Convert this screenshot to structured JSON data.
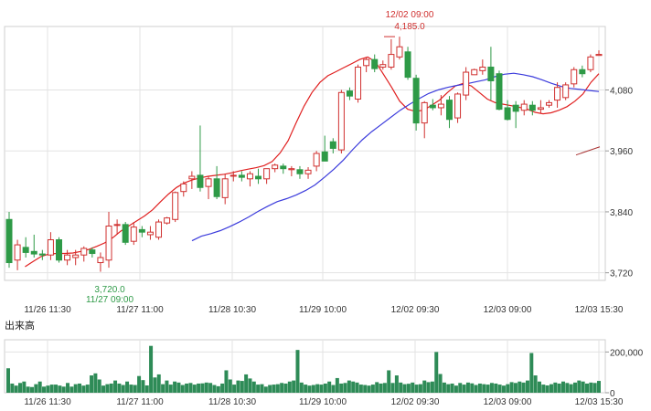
{
  "chart_data": [
    {
      "type": "candlestick",
      "title": "",
      "x_ticks": [
        "11/26 11:30",
        "11/27 11:00",
        "11/28 10:30",
        "11/29 10:00",
        "12/02 09:30",
        "12/03 09:00",
        "12/03 15:30"
      ],
      "y_ticks": [
        "4,080",
        "3,960",
        "3,840",
        "3,720"
      ],
      "y_tick_values": [
        4080,
        3960,
        3840,
        3720
      ],
      "ylim": [
        3705,
        4205
      ],
      "grid": true,
      "annotations": {
        "high": {
          "time": "12/02 09:00",
          "value": "4,185.0"
        },
        "low": {
          "time": "11/27 09:00",
          "value": "3,720.0"
        }
      },
      "candles": [
        [
          3825,
          3840,
          3730,
          3740
        ],
        [
          3745,
          3785,
          3725,
          3775
        ],
        [
          3770,
          3790,
          3750,
          3760
        ],
        [
          3762,
          3795,
          3750,
          3757
        ],
        [
          3757,
          3765,
          3745,
          3755
        ],
        [
          3755,
          3800,
          3745,
          3785
        ],
        [
          3785,
          3790,
          3740,
          3745
        ],
        [
          3745,
          3765,
          3735,
          3755
        ],
        [
          3750,
          3765,
          3735,
          3755
        ],
        [
          3755,
          3772,
          3742,
          3768
        ],
        [
          3765,
          3770,
          3750,
          3758
        ],
        [
          3740,
          3760,
          3722,
          3750
        ],
        [
          3745,
          3840,
          3730,
          3812
        ],
        [
          3815,
          3825,
          3795,
          3815
        ],
        [
          3815,
          3820,
          3775,
          3780
        ],
        [
          3782,
          3820,
          3775,
          3810
        ],
        [
          3805,
          3812,
          3790,
          3800
        ],
        [
          3795,
          3812,
          3785,
          3800
        ],
        [
          3790,
          3825,
          3785,
          3820
        ],
        [
          3818,
          3830,
          3815,
          3828
        ],
        [
          3825,
          3880,
          3820,
          3878
        ],
        [
          3880,
          3900,
          3870,
          3895
        ],
        [
          3905,
          3920,
          3885,
          3910
        ],
        [
          3912,
          4010,
          3880,
          3888
        ],
        [
          3890,
          3910,
          3865,
          3905
        ],
        [
          3905,
          3930,
          3865,
          3870
        ],
        [
          3868,
          3915,
          3855,
          3905
        ],
        [
          3912,
          3920,
          3900,
          3912
        ],
        [
          3912,
          3920,
          3900,
          3908
        ],
        [
          3905,
          3920,
          3890,
          3915
        ],
        [
          3910,
          3925,
          3895,
          3905
        ],
        [
          3905,
          3920,
          3895,
          3925
        ],
        [
          3925,
          3935,
          3918,
          3932
        ],
        [
          3930,
          3935,
          3915,
          3925
        ],
        [
          3923,
          3930,
          3910,
          3925
        ],
        [
          3923,
          3930,
          3905,
          3915
        ],
        [
          3915,
          3928,
          3905,
          3922
        ],
        [
          3930,
          3960,
          3920,
          3955
        ],
        [
          3958,
          3990,
          3940,
          3940
        ],
        [
          3978,
          3985,
          3955,
          3965
        ],
        [
          3962,
          4080,
          3955,
          4075
        ],
        [
          4078,
          4085,
          4060,
          4068
        ],
        [
          4062,
          4130,
          4055,
          4125
        ],
        [
          4128,
          4145,
          4115,
          4140
        ],
        [
          4140,
          4150,
          4115,
          4122
        ],
        [
          4125,
          4138,
          4120,
          4130
        ],
        [
          4125,
          4180,
          4120,
          4150
        ],
        [
          4145,
          4185,
          4140,
          4165
        ],
        [
          4155,
          4165,
          4100,
          4105
        ],
        [
          4103,
          4110,
          4000,
          4015
        ],
        [
          4015,
          4058,
          3985,
          4055
        ],
        [
          4050,
          4062,
          4040,
          4045
        ],
        [
          4045,
          4070,
          4030,
          4052
        ],
        [
          4060,
          4068,
          4005,
          4022
        ],
        [
          4025,
          4075,
          4015,
          4072
        ],
        [
          4070,
          4125,
          4060,
          4115
        ],
        [
          4110,
          4122,
          4110,
          4120
        ],
        [
          4118,
          4140,
          4110,
          4125
        ],
        [
          4125,
          4165,
          4060,
          4098
        ],
        [
          4112,
          4118,
          4040,
          4042
        ],
        [
          4045,
          4060,
          4020,
          4022
        ],
        [
          4050,
          4058,
          4005,
          4038
        ],
        [
          4040,
          4060,
          4030,
          4052
        ],
        [
          4050,
          4058,
          4030,
          4040
        ],
        [
          4042,
          4060,
          4035,
          4045
        ],
        [
          4050,
          4060,
          4045,
          4055
        ],
        [
          4060,
          4095,
          4045,
          4085
        ],
        [
          4065,
          4095,
          4060,
          4090
        ],
        [
          4092,
          4125,
          4085,
          4120
        ],
        [
          4120,
          4128,
          4105,
          4112
        ],
        [
          4120,
          4150,
          4115,
          4145
        ],
        [
          4148,
          4158,
          4148,
          4150
        ]
      ],
      "series": [
        {
          "kind": "ma-short",
          "color": "#e02020",
          "points": [
            [
              12,
              3732
            ],
            [
              18,
              3742
            ],
            [
              24,
              3752
            ],
            [
              30,
              3757
            ],
            [
              36,
              3758
            ],
            [
              42,
              3758
            ],
            [
              48,
              3759
            ],
            [
              54,
              3762
            ],
            [
              60,
              3766
            ],
            [
              66,
              3772
            ],
            [
              72,
              3779
            ],
            [
              78,
              3789
            ],
            [
              84,
              3802
            ],
            [
              90,
              3812
            ],
            [
              96,
              3822
            ],
            [
              102,
              3832
            ],
            [
              108,
              3844
            ],
            [
              114,
              3860
            ],
            [
              120,
              3875
            ],
            [
              126,
              3888
            ],
            [
              132,
              3897
            ],
            [
              138,
              3903
            ],
            [
              144,
              3907
            ],
            [
              150,
              3910
            ],
            [
              156,
              3912
            ],
            [
              162,
              3914
            ],
            [
              168,
              3917
            ],
            [
              174,
              3921
            ],
            [
              180,
              3924
            ],
            [
              186,
              3927
            ],
            [
              192,
              3931
            ],
            [
              198,
              3939
            ],
            [
              204,
              3956
            ],
            [
              210,
              3980
            ],
            [
              216,
              4015
            ],
            [
              222,
              4048
            ],
            [
              228,
              4075
            ],
            [
              234,
              4095
            ],
            [
              240,
              4108
            ],
            [
              246,
              4116
            ],
            [
              252,
              4124
            ],
            [
              258,
              4132
            ],
            [
              264,
              4140
            ],
            [
              270,
              4145
            ],
            [
              276,
              4135
            ],
            [
              282,
              4110
            ],
            [
              288,
              4085
            ],
            [
              294,
              4058
            ],
            [
              300,
              4042
            ],
            [
              306,
              4038
            ],
            [
              312,
              4040
            ],
            [
              318,
              4050
            ],
            [
              324,
              4060
            ],
            [
              330,
              4075
            ],
            [
              336,
              4088
            ],
            [
              342,
              4093
            ],
            [
              348,
              4088
            ],
            [
              354,
              4075
            ],
            [
              360,
              4062
            ],
            [
              366,
              4055
            ],
            [
              372,
              4052
            ],
            [
              378,
              4049
            ],
            [
              384,
              4046
            ],
            [
              390,
              4042
            ],
            [
              396,
              4036
            ],
            [
              402,
              4033
            ],
            [
              408,
              4035
            ],
            [
              414,
              4040
            ],
            [
              420,
              4047
            ],
            [
              426,
              4058
            ],
            [
              432,
              4072
            ],
            [
              438,
              4095
            ],
            [
              444,
              4112
            ]
          ]
        },
        {
          "kind": "ma-long",
          "color": "#3b3bdc",
          "points": [
            [
              120,
              3783
            ],
            [
              130,
              3792
            ],
            [
              140,
              3797
            ],
            [
              150,
              3803
            ],
            [
              160,
              3811
            ],
            [
              170,
              3820
            ],
            [
              180,
              3830
            ],
            [
              190,
              3841
            ],
            [
              200,
              3851
            ],
            [
              210,
              3860
            ],
            [
              220,
              3866
            ],
            [
              230,
              3873
            ],
            [
              240,
              3882
            ],
            [
              250,
              3893
            ],
            [
              260,
              3908
            ],
            [
              270,
              3924
            ],
            [
              280,
              3942
            ],
            [
              290,
              3963
            ],
            [
              300,
              3982
            ],
            [
              310,
              3998
            ],
            [
              320,
              4012
            ],
            [
              330,
              4026
            ],
            [
              340,
              4040
            ],
            [
              350,
              4052
            ],
            [
              360,
              4063
            ],
            [
              370,
              4073
            ],
            [
              380,
              4080
            ],
            [
              390,
              4085
            ],
            [
              400,
              4089
            ],
            [
              410,
              4092
            ],
            [
              420,
              4096
            ],
            [
              430,
              4100
            ],
            [
              440,
              4106
            ],
            [
              450,
              4111
            ],
            [
              460,
              4113
            ],
            [
              470,
              4110
            ],
            [
              480,
              4106
            ],
            [
              490,
              4100
            ],
            [
              500,
              4093
            ],
            [
              510,
              4087
            ],
            [
              520,
              4083
            ],
            [
              530,
              4081
            ],
            [
              540,
              4079
            ],
            [
              550,
              4077
            ]
          ]
        },
        {
          "kind": "trend",
          "color": "#a83232",
          "points": [
            [
              630,
              3952
            ],
            [
              656,
              3968
            ]
          ]
        }
      ]
    },
    {
      "type": "bar",
      "title": "出来高",
      "y_ticks": [
        "200,000",
        "0"
      ],
      "y_tick_values": [
        200000,
        0
      ],
      "ylim": [
        0,
        260000
      ],
      "x_ticks": [
        "11/26 11:30",
        "11/27 11:00",
        "11/28 10:30",
        "11/29 10:00",
        "12/02 09:30",
        "12/03 09:00",
        "12/03 15:30"
      ],
      "grid": true,
      "values": [
        120000,
        45000,
        35000,
        48000,
        55000,
        30000,
        28000,
        42000,
        55000,
        30000,
        35000,
        40000,
        40000,
        35000,
        30000,
        48000,
        30000,
        42000,
        45000,
        35000,
        40000,
        85000,
        95000,
        65000,
        35000,
        42000,
        45000,
        60000,
        45000,
        38000,
        55000,
        40000,
        38000,
        82000,
        62000,
        36000,
        230000,
        75000,
        90000,
        42000,
        60000,
        40000,
        55000,
        50000,
        38000,
        45000,
        48000,
        40000,
        45000,
        46000,
        50000,
        48000,
        38000,
        32000,
        45000,
        110000,
        65000,
        40000,
        60000,
        58000,
        90000,
        70000,
        55000,
        40000,
        42000,
        30000,
        38000,
        40000,
        42000,
        48000,
        45000,
        55000,
        60000,
        210000,
        50000,
        40000,
        35000,
        38000,
        42000,
        40000,
        45000,
        55000,
        38000,
        72000,
        45000,
        48000,
        60000,
        55000,
        50000,
        40000,
        38000,
        35000,
        40000,
        52000,
        45000,
        48000,
        110000,
        48000,
        85000,
        50000,
        42000,
        44000,
        50000,
        40000,
        42000,
        60000,
        52000,
        55000,
        200000,
        92000,
        50000,
        42000,
        45000,
        35000,
        48000,
        40000,
        50000,
        46000,
        38000,
        45000,
        42000,
        40000,
        48000,
        45000,
        40000,
        35000,
        42000,
        52000,
        48000,
        55000,
        50000,
        60000,
        195000,
        85000,
        55000,
        40000,
        36000,
        42000,
        50000,
        45000,
        55000,
        48000,
        42000,
        50000,
        60000,
        55000,
        45000,
        50000,
        48000,
        58000
      ]
    }
  ],
  "colors": {
    "up": "#d0302f",
    "down": "#2e9a47",
    "volume": "#2e8b57",
    "grid": "#e3e3e3",
    "frame": "#cfcfcf"
  }
}
